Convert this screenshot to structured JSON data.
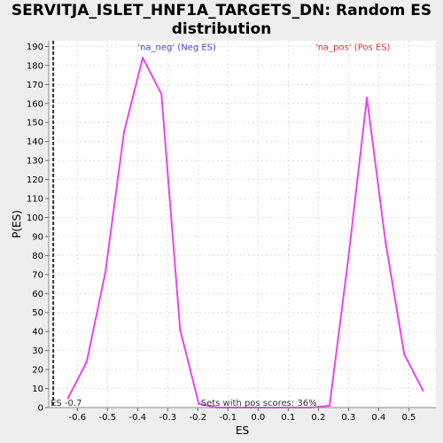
{
  "chart_data": {
    "type": "line",
    "title_line1": "SERVITJA_ISLET_HNF1A_TARGETS_DN: Random ES",
    "title_line2": "distribution",
    "xlabel": "ES",
    "ylabel": "P(ES)",
    "xlim": [
      -0.695,
      0.59
    ],
    "ylim": [
      0,
      193
    ],
    "xticks": [
      -0.6,
      -0.5,
      -0.4,
      -0.3,
      -0.2,
      -0.1,
      0.0,
      0.1,
      0.2,
      0.3,
      0.4,
      0.5
    ],
    "xtick_labels": [
      "-0.6",
      "-0.5",
      "-0.4",
      "-0.3",
      "-0.2",
      "-0.1",
      "0.0",
      "0.1",
      "0.2",
      "0.3",
      "0.4",
      "0.5"
    ],
    "yticks": [
      0,
      10,
      20,
      30,
      40,
      50,
      60,
      70,
      80,
      90,
      100,
      110,
      120,
      130,
      140,
      150,
      160,
      170,
      180,
      190
    ],
    "grid": true,
    "series": [
      {
        "color": "#ee44ee",
        "points": [
          [
            -0.631,
            5
          ],
          [
            -0.569,
            24
          ],
          [
            -0.507,
            71
          ],
          [
            -0.445,
            145
          ],
          [
            -0.383,
            184
          ],
          [
            -0.321,
            165
          ],
          [
            -0.259,
            41
          ],
          [
            -0.197,
            2
          ],
          [
            -0.135,
            0
          ],
          [
            -0.073,
            0
          ],
          [
            -0.011,
            0
          ],
          [
            0.051,
            0
          ],
          [
            0.113,
            0
          ],
          [
            0.175,
            0
          ],
          [
            0.237,
            1
          ],
          [
            0.299,
            78
          ],
          [
            0.361,
            163
          ],
          [
            0.423,
            87
          ],
          [
            0.485,
            28
          ],
          [
            0.547,
            9
          ]
        ]
      }
    ],
    "es_line": {
      "x": -0.68,
      "label": "ES -0.7",
      "color": "#333333"
    },
    "annotations": {
      "neg": {
        "text": "'na_neg' (Neg ES)",
        "color": "#4444cc",
        "x": -0.4,
        "y": 188
      },
      "pos": {
        "text": "'na_pos' (Pos ES)",
        "color": "#dd3333",
        "x": 0.19,
        "y": 188
      },
      "sets": {
        "text": "Sets with pos scores: 36%",
        "color": "#333333",
        "x": -0.19,
        "y": 1
      }
    }
  }
}
